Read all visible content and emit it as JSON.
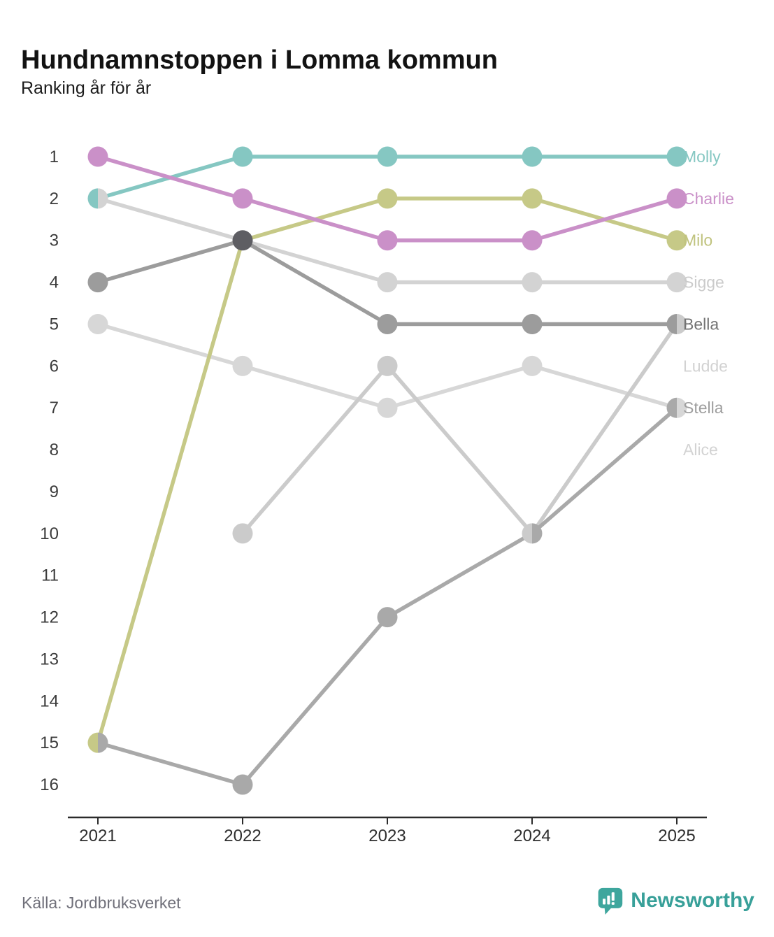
{
  "title": "Hundnamnstoppen i Lomma kommun",
  "subtitle": "Ranking år för år",
  "source": "Källa: Jordbruksverket",
  "brand": {
    "name": "Newsworthy",
    "color": "#3ea69d",
    "icon": "bar-chart-speech-bubble"
  },
  "chart_data": {
    "type": "line",
    "variant": "bump-ranking",
    "title": "Hundnamnstoppen i Lomma kommun",
    "subtitle": "Ranking år för år",
    "xlabel": "",
    "ylabel": "",
    "x": [
      2021,
      2022,
      2023,
      2024,
      2025
    ],
    "xtick_labels": [
      "2021",
      "2022",
      "2023",
      "2024",
      "2025"
    ],
    "yticks": [
      1,
      2,
      3,
      4,
      5,
      6,
      7,
      8,
      9,
      10,
      11,
      12,
      13,
      14,
      15,
      16
    ],
    "ylim": [
      1,
      16
    ],
    "y_inverted": true,
    "grid": false,
    "legend_position": "right-of-last-point",
    "tie_marker_color": "#5e5e63",
    "axis_color": "#2b2b2b",
    "tick_label_color": "#3b3b3b",
    "series": [
      {
        "name": "Molly",
        "color": "#85c7c2",
        "label_color": "#85c7c2",
        "label_rank": 1,
        "values": [
          2,
          1,
          1,
          1,
          1
        ],
        "z": 6
      },
      {
        "name": "Charlie",
        "color": "#ca90c8",
        "label_color": "#ca90c8",
        "label_rank": 2,
        "values": [
          1,
          2,
          3,
          3,
          2
        ],
        "z": 7
      },
      {
        "name": "Milo",
        "color": "#c6c987",
        "label_color": "#c0c37e",
        "label_rank": 3,
        "values": [
          15,
          3,
          2,
          2,
          3
        ],
        "z": 5
      },
      {
        "name": "Sigge",
        "color": "#d3d3d3",
        "label_color": "#cbcbcb",
        "label_rank": 4,
        "values": [
          2,
          3,
          4,
          4,
          4
        ],
        "z": 3
      },
      {
        "name": "Bella",
        "color": "#9c9c9c",
        "label_color": "#737373",
        "label_rank": 5,
        "values": [
          4,
          3,
          5,
          5,
          5
        ],
        "z": 4
      },
      {
        "name": "Ludde",
        "color": "#cbcbcb",
        "label_color": "#d2d2d2",
        "label_rank": 6,
        "values": [
          null,
          10,
          6,
          10,
          5
        ],
        "z": 1
      },
      {
        "name": "Stella",
        "color": "#a9a9a9",
        "label_color": "#9e9e9e",
        "label_rank": 7,
        "values": [
          15,
          16,
          12,
          10,
          7
        ],
        "z": 2
      },
      {
        "name": "Alice",
        "color": "#d7d7d7",
        "label_color": "#d3d3d3",
        "label_rank": 8,
        "values": [
          5,
          6,
          7,
          6,
          7
        ],
        "z": 0
      }
    ]
  }
}
